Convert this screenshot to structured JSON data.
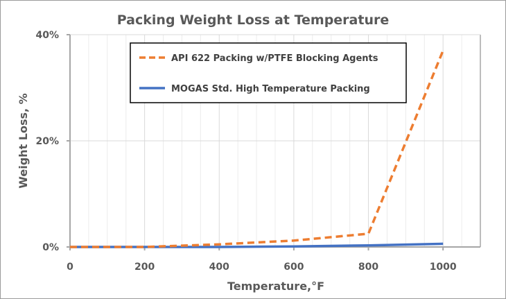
{
  "chart_data": {
    "type": "line",
    "title": "Packing Weight Loss at Temperature",
    "xlabel": "Temperature,°F",
    "ylabel": "Weight  Loss, %",
    "xlim": [
      0,
      1100
    ],
    "ylim": [
      0,
      40
    ],
    "x_ticks": [
      0,
      200,
      400,
      600,
      800,
      1000
    ],
    "x_tick_labels": [
      "0",
      "200",
      "400",
      "600",
      "800",
      "1000"
    ],
    "y_ticks": [
      0,
      20,
      40
    ],
    "y_tick_labels": [
      "0%",
      "20%",
      "40%"
    ],
    "x_minor_grid_step": 50,
    "grid": true,
    "legend_position": "top-center",
    "series": [
      {
        "name": "API 622 Packing w/PTFE Blocking Agents",
        "color": "#ED7D31",
        "style": "dashed",
        "x": [
          0,
          200,
          400,
          600,
          800,
          1000
        ],
        "y": [
          0,
          0,
          0.5,
          1.2,
          2.5,
          37
        ]
      },
      {
        "name": "MOGAS Std. High Temperature Packing",
        "color": "#4472C4",
        "style": "solid",
        "x": [
          0,
          200,
          400,
          600,
          800,
          1000
        ],
        "y": [
          0,
          0,
          0,
          0.1,
          0.3,
          0.6
        ]
      }
    ]
  }
}
